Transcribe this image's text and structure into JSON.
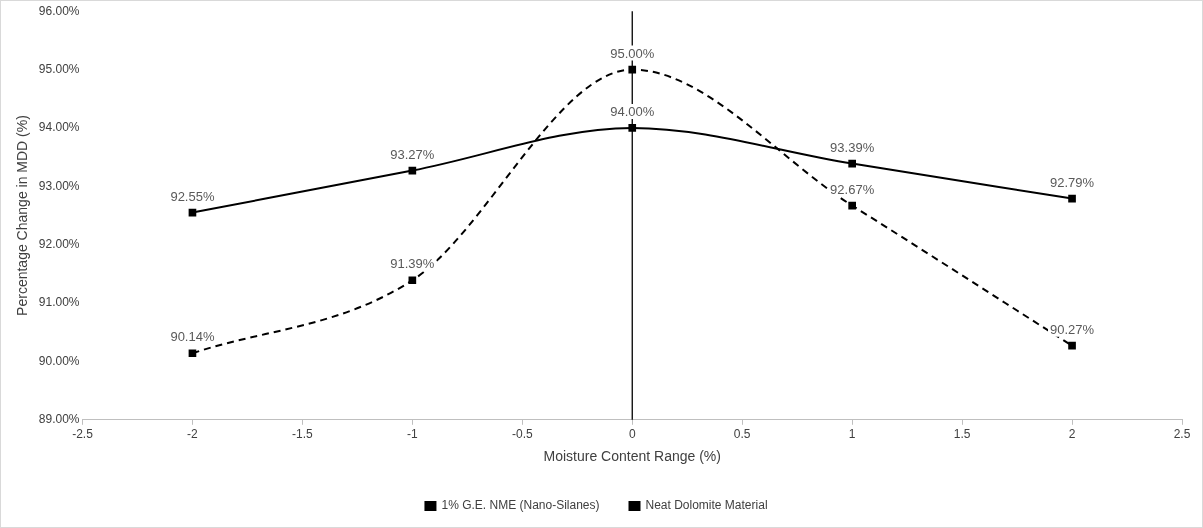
{
  "chart_data": {
    "type": "line",
    "xlabel": "Moisture Content Range (%)",
    "ylabel": "Percentage Change in MDD (%)",
    "x": [
      -2,
      -1,
      0,
      1,
      2
    ],
    "series": [
      {
        "name": "1% G.E. NME (Nano-Silanes)",
        "color": "#000000",
        "values": [
          92.55,
          93.27,
          94.0,
          93.39,
          92.79
        ],
        "value_labels": [
          "92.55%",
          "93.27%",
          "94.00%",
          "93.39%",
          "92.79%"
        ],
        "line_style": "solid"
      },
      {
        "name": "Neat Dolomite Material",
        "color": "#000000",
        "values": [
          90.14,
          91.39,
          95.0,
          92.67,
          90.27
        ],
        "value_labels": [
          "90.14%",
          "91.39%",
          "95.00%",
          "92.67%",
          "90.27%"
        ],
        "line_style": "dashed"
      }
    ],
    "xlim": [
      -2.5,
      2.5
    ],
    "xticks": [
      -2.5,
      -2,
      -1.5,
      -1,
      -0.5,
      0,
      0.5,
      1,
      1.5,
      2,
      2.5
    ],
    "ylim": [
      89,
      96
    ],
    "yticks": [
      {
        "value": 89,
        "label": "89.00%"
      },
      {
        "value": 90,
        "label": "90.00%"
      },
      {
        "value": 91,
        "label": "91.00%"
      },
      {
        "value": 92,
        "label": "92.00%"
      },
      {
        "value": 93,
        "label": "93.00%"
      },
      {
        "value": 94,
        "label": "94.00%"
      },
      {
        "value": 95,
        "label": "95.00%"
      },
      {
        "value": 96,
        "label": "96.00%"
      }
    ],
    "ref_lines": [
      {
        "axis": "x",
        "value": 0,
        "color": "#000000"
      }
    ],
    "marker": "square",
    "grid": false,
    "legend": "bottom"
  }
}
